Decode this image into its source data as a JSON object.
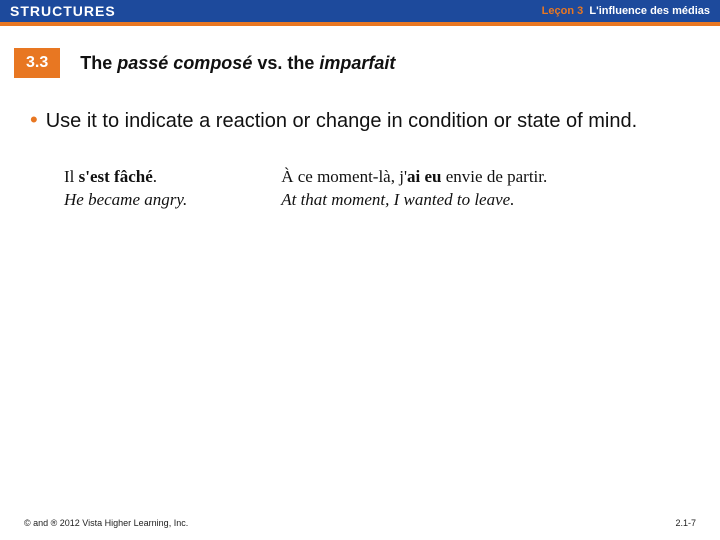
{
  "header": {
    "structures": "STRUCTURES",
    "lecon_label": "Leçon",
    "lecon_number": "3",
    "lecon_title": "L'influence des médias"
  },
  "section": {
    "badge": "3.3",
    "title_lead": "The ",
    "title_term1": "passé composé",
    "title_mid": " vs. the ",
    "title_term2": "imparfait"
  },
  "bullet": {
    "text": "Use it to indicate a reaction or change in condition or state of mind."
  },
  "examples": {
    "ex1_fr_pre": "Il ",
    "ex1_fr_aux": "s'est fâché",
    "ex1_fr_post": ".",
    "ex1_en": "He became angry.",
    "ex2_fr_pre": "À ce moment-là, j'",
    "ex2_fr_aux": "ai eu",
    "ex2_fr_post": " envie de partir.",
    "ex2_en": "At that moment, I wanted to leave."
  },
  "footer": {
    "copyright": "© and ® 2012 Vista Higher Learning, Inc.",
    "page": "2.1-7"
  },
  "colors": {
    "header_bg": "#1d4a9c",
    "accent": "#e87722",
    "text": "#111111",
    "page_bg": "#ffffff"
  },
  "typography": {
    "body_font": "Arial",
    "example_font": "Georgia",
    "body_size_pt": 15,
    "example_size_pt": 13,
    "footer_size_pt": 7
  }
}
